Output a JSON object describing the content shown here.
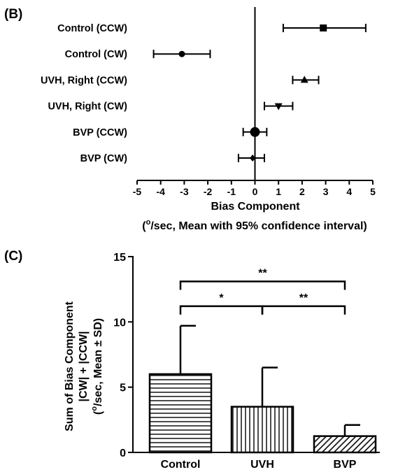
{
  "chart_data": [
    {
      "panel_label": "(B)",
      "type": "forest",
      "categories": [
        "Control (CCW)",
        "Control (CW)",
        "UVH, Right (CCW)",
        "UVH, Right (CW)",
        "BVP (CCW)",
        "BVP (CW)"
      ],
      "markers": [
        "square",
        "circle",
        "triangle-up",
        "triangle-down",
        "circle-large",
        "diamond"
      ],
      "mean": [
        2.9,
        -3.1,
        2.1,
        1.0,
        0.0,
        -0.1
      ],
      "ci_low": [
        1.2,
        -4.3,
        1.6,
        0.4,
        -0.5,
        -0.7
      ],
      "ci_high": [
        4.7,
        -1.9,
        2.7,
        1.6,
        0.5,
        0.4
      ],
      "xlim": [
        -5,
        5
      ],
      "xticks": [
        "-5",
        "-4",
        "-3",
        "-2",
        "-1",
        "0",
        "1",
        "2",
        "3",
        "4",
        "5"
      ],
      "xlabel": "Bias Component",
      "xlabel2_pre": "(",
      "xlabel2_sup": "o",
      "xlabel2_post": "/sec, Mean with 95% confidence interval)"
    },
    {
      "panel_label": "(C)",
      "type": "bar",
      "categories": [
        "Control",
        "UVH",
        "BVP"
      ],
      "values": [
        6.0,
        3.5,
        1.25
      ],
      "sd": [
        3.7,
        3.0,
        0.85
      ],
      "hatch": [
        "horizontal",
        "vertical",
        "diagonal"
      ],
      "ylim": [
        0,
        15
      ],
      "yticks": [
        "0",
        "5",
        "10",
        "15"
      ],
      "ylabel_line1": "Sum of Bias Component",
      "ylabel_line2": "|CW| + |CCW|",
      "ylabel_line3_pre": "(",
      "ylabel_line3_sup": "o",
      "ylabel_line3_post": "/sec, Mean ± SD)",
      "significance": [
        {
          "from": 0,
          "to": 2,
          "label": "**"
        },
        {
          "from": 0,
          "to": 1,
          "label": "*"
        },
        {
          "from": 1,
          "to": 2,
          "label": "**"
        }
      ]
    }
  ]
}
